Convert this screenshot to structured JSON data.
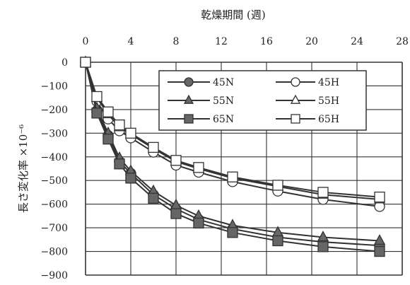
{
  "chart_data": {
    "type": "line",
    "xlabel": "乾燥期間 (週)",
    "ylabel": "長さ変化率 ×10⁻⁶",
    "x_axis_position": "top",
    "xlim": [
      0,
      28
    ],
    "ylim": [
      -900,
      0
    ],
    "xticks": [
      "0",
      "4",
      "8",
      "12",
      "16",
      "20",
      "24",
      "28"
    ],
    "yticks": [
      "0",
      "−100",
      "−200",
      "−300",
      "−400",
      "−500",
      "−600",
      "−700",
      "−800",
      "−900"
    ],
    "grid": true,
    "legend_position": "top-right",
    "series": [
      {
        "name": "45N",
        "marker": "circle",
        "filled": true,
        "x": [
          0,
          1,
          2,
          3,
          4,
          6,
          8,
          10,
          13,
          17,
          21,
          26
        ],
        "y": [
          0,
          -205,
          -310,
          -420,
          -470,
          -560,
          -620,
          -665,
          -705,
          -740,
          -760,
          -775
        ]
      },
      {
        "name": "45H",
        "marker": "circle",
        "filled": false,
        "x": [
          0,
          1,
          2,
          3,
          4,
          6,
          8,
          10,
          13,
          17,
          21,
          26
        ],
        "y": [
          0,
          -165,
          -240,
          -290,
          -320,
          -380,
          -435,
          -465,
          -505,
          -545,
          -580,
          -610
        ]
      },
      {
        "name": "55N",
        "marker": "triangle",
        "filled": true,
        "x": [
          0,
          1,
          2,
          3,
          4,
          6,
          8,
          10,
          13,
          17,
          21,
          26
        ],
        "y": [
          0,
          -195,
          -300,
          -405,
          -460,
          -545,
          -605,
          -650,
          -690,
          -720,
          -740,
          -755
        ]
      },
      {
        "name": "55H",
        "marker": "triangle",
        "filled": false,
        "x": [
          0,
          1,
          2,
          3,
          4,
          6,
          8,
          10,
          13,
          17,
          21,
          26
        ],
        "y": [
          0,
          -150,
          -220,
          -275,
          -305,
          -365,
          -420,
          -450,
          -490,
          -525,
          -560,
          -580
        ]
      },
      {
        "name": "65N",
        "marker": "square",
        "filled": true,
        "x": [
          0,
          1,
          2,
          3,
          4,
          6,
          8,
          10,
          13,
          17,
          21,
          26
        ],
        "y": [
          0,
          -215,
          -325,
          -430,
          -490,
          -575,
          -640,
          -680,
          -720,
          -755,
          -780,
          -800
        ]
      },
      {
        "name": "65H",
        "marker": "square",
        "filled": false,
        "x": [
          0,
          1,
          2,
          3,
          4,
          6,
          8,
          10,
          13,
          17,
          21,
          26
        ],
        "y": [
          0,
          -145,
          -210,
          -265,
          -300,
          -360,
          -415,
          -445,
          -485,
          -520,
          -550,
          -570
        ]
      }
    ]
  }
}
